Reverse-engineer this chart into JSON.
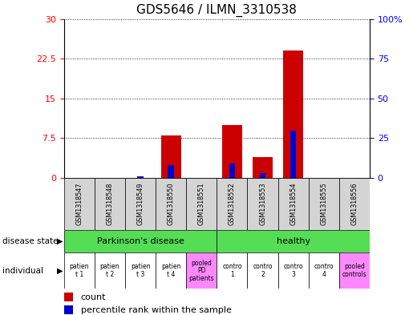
{
  "title": "GDS5646 / ILMN_3310538",
  "samples": [
    "GSM1318547",
    "GSM1318548",
    "GSM1318549",
    "GSM1318550",
    "GSM1318551",
    "GSM1318552",
    "GSM1318553",
    "GSM1318554",
    "GSM1318555",
    "GSM1318556"
  ],
  "count_values": [
    0,
    0,
    0,
    8,
    0,
    10,
    4,
    24,
    0,
    0
  ],
  "percentile_values": [
    0,
    0,
    1,
    8,
    0,
    9,
    3,
    30,
    0,
    0
  ],
  "ylim_left": [
    0,
    30
  ],
  "ylim_right": [
    0,
    100
  ],
  "yticks_left": [
    0,
    7.5,
    15,
    22.5,
    30
  ],
  "yticks_right": [
    0,
    25,
    50,
    75,
    100
  ],
  "individual_labels": [
    "patien\nt 1",
    "patien\nt 2",
    "patien\nt 3",
    "patien\nt 4",
    "pooled\nPD\npatients",
    "contro\n1",
    "contro\n2",
    "contro\n3",
    "contro\n4",
    "pooled\ncontrols"
  ],
  "individual_colors": [
    "#ffffff",
    "#ffffff",
    "#ffffff",
    "#ffffff",
    "#ff88ff",
    "#ffffff",
    "#ffffff",
    "#ffffff",
    "#ffffff",
    "#ff88ff"
  ],
  "bar_color_red": "#cc0000",
  "bar_color_blue": "#0000cc",
  "red_bar_width": 0.65,
  "blue_bar_width": 0.2,
  "bg_color": "#ffffff",
  "sample_cell_color": "#d4d4d4",
  "disease_color": "#55dd55",
  "right_axis_label_100": "100%",
  "right_axis_labels": [
    "0",
    "25",
    "50",
    "75",
    "100%"
  ],
  "left_axis_labels": [
    "0",
    "7.5",
    "15",
    "22.5",
    "30"
  ]
}
